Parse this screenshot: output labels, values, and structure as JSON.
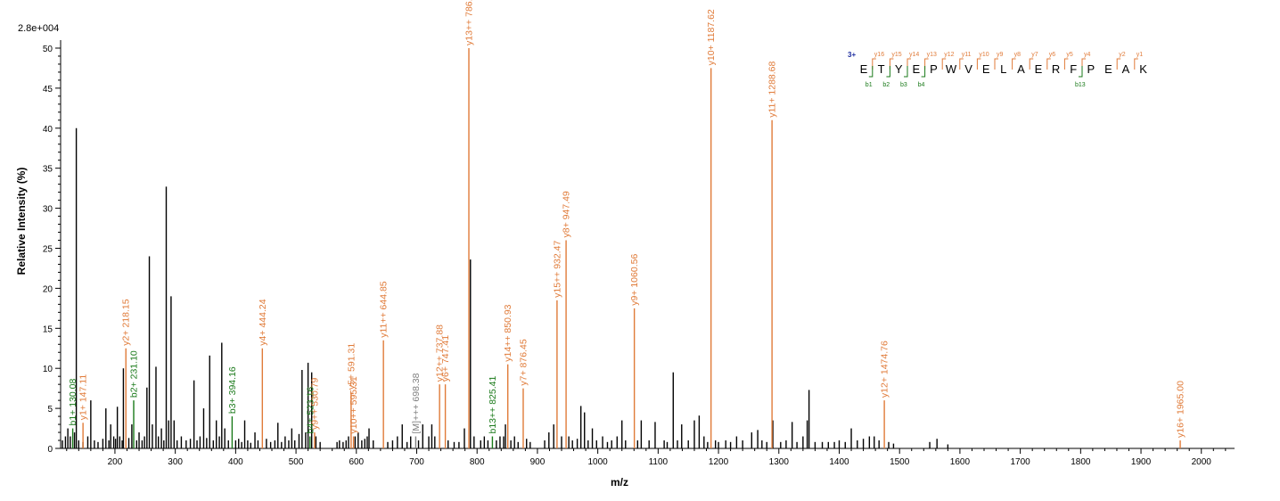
{
  "chart_data": {
    "type": "bar",
    "title": "",
    "scale_label": "2.8e+004",
    "xlabel": "m/z",
    "ylabel": "Relative   Intensity (%)",
    "xlim": [
      110,
      2055
    ],
    "ylim": [
      0,
      51
    ],
    "x_ticks": [
      "200",
      "300",
      "400",
      "500",
      "600",
      "700",
      "800",
      "900",
      "1000",
      "1100",
      "1200",
      "1300",
      "1400",
      "1500",
      "1600",
      "1700",
      "1800",
      "1900",
      "2000"
    ],
    "y_ticks": [
      "0",
      "5",
      "10",
      "15",
      "20",
      "25",
      "30",
      "35",
      "40",
      "45",
      "50"
    ],
    "colors": {
      "y_ion": "#e07b39",
      "b_ion": "#1a7a1a",
      "other": "#808080",
      "peak": "#000000",
      "charge": "#1f2fa0"
    },
    "annotated_peaks": [
      {
        "mz": 130.08,
        "intensity": 2.5,
        "label": "b1+ 130.08",
        "ion": "b"
      },
      {
        "mz": 147.11,
        "intensity": 3.2,
        "label": "y1+ 147.11",
        "ion": "y"
      },
      {
        "mz": 218.15,
        "intensity": 12.5,
        "label": "y2+ 218.15",
        "ion": "y"
      },
      {
        "mz": 231.1,
        "intensity": 6.0,
        "label": "b2+ 231.10",
        "ion": "b"
      },
      {
        "mz": 394.16,
        "intensity": 4.0,
        "label": "b3+ 394.16",
        "ion": "b"
      },
      {
        "mz": 444.24,
        "intensity": 12.5,
        "label": "y4+ 444.24",
        "ion": "y"
      },
      {
        "mz": 523.16,
        "intensity": 1.5,
        "label": "b4+ 523.16",
        "ion": "b"
      },
      {
        "mz": 530.79,
        "intensity": 2.0,
        "label": "y9++ 530.79",
        "ion": "y"
      },
      {
        "mz": 591.31,
        "intensity": 7.0,
        "label": "y5+ 591.31",
        "ion": "y"
      },
      {
        "mz": 595.31,
        "intensity": 1.5,
        "label": "y10++ 595.31",
        "ion": "y"
      },
      {
        "mz": 644.85,
        "intensity": 13.5,
        "label": "y11++ 644.85",
        "ion": "y"
      },
      {
        "mz": 698.38,
        "intensity": 1.5,
        "label": "[M]+++ 698.38",
        "ion": "other"
      },
      {
        "mz": 737.88,
        "intensity": 8.0,
        "label": "y12++ 737.88",
        "ion": "y"
      },
      {
        "mz": 747.41,
        "intensity": 8.0,
        "label": "y6+ 747.41",
        "ion": "y"
      },
      {
        "mz": 786.41,
        "intensity": 50.0,
        "label": "y13++ 786.41",
        "ion": "y"
      },
      {
        "mz": 825.41,
        "intensity": 1.5,
        "label": "b13++ 825.41",
        "ion": "b"
      },
      {
        "mz": 850.93,
        "intensity": 10.5,
        "label": "y14++ 850.93",
        "ion": "y"
      },
      {
        "mz": 876.45,
        "intensity": 7.5,
        "label": "y7+ 876.45",
        "ion": "y"
      },
      {
        "mz": 932.47,
        "intensity": 18.5,
        "label": "y15++ 932.47",
        "ion": "y"
      },
      {
        "mz": 947.49,
        "intensity": 26.0,
        "label": "y8+ 947.49",
        "ion": "y"
      },
      {
        "mz": 1060.56,
        "intensity": 17.5,
        "label": "y9+ 1060.56",
        "ion": "y"
      },
      {
        "mz": 1187.62,
        "intensity": 47.5,
        "label": "y10+ 1187.62",
        "ion": "y"
      },
      {
        "mz": 1288.68,
        "intensity": 41.0,
        "label": "y11+ 1288.68",
        "ion": "y"
      },
      {
        "mz": 1474.76,
        "intensity": 6.0,
        "label": "y12+ 1474.76",
        "ion": "y"
      },
      {
        "mz": 1965.0,
        "intensity": 1.0,
        "label": "y16+ 1965.00",
        "ion": "y"
      }
    ],
    "peaks": [
      [
        113,
        1.0
      ],
      [
        118,
        1.5
      ],
      [
        122,
        2.5
      ],
      [
        126,
        1.5
      ],
      [
        133,
        2.0
      ],
      [
        136,
        40.0
      ],
      [
        140,
        1.0
      ],
      [
        147,
        0.8
      ],
      [
        155,
        1.5
      ],
      [
        160,
        6.0
      ],
      [
        166,
        1.0
      ],
      [
        172,
        0.8
      ],
      [
        180,
        1.2
      ],
      [
        185,
        5.0
      ],
      [
        190,
        1.0
      ],
      [
        193,
        3.0
      ],
      [
        198,
        1.5
      ],
      [
        201,
        1.2
      ],
      [
        204,
        5.2
      ],
      [
        208,
        1.5
      ],
      [
        212,
        1.0
      ],
      [
        214,
        10.0
      ],
      [
        223,
        1.3
      ],
      [
        228,
        3.0
      ],
      [
        236,
        1.0
      ],
      [
        240,
        2.0
      ],
      [
        245,
        1.0
      ],
      [
        249,
        1.5
      ],
      [
        253,
        7.6
      ],
      [
        257,
        24.0
      ],
      [
        262,
        3.0
      ],
      [
        268,
        10.2
      ],
      [
        272,
        1.5
      ],
      [
        277,
        2.5
      ],
      [
        281,
        1.0
      ],
      [
        285,
        32.7
      ],
      [
        289,
        3.5
      ],
      [
        293,
        19.0
      ],
      [
        298,
        3.5
      ],
      [
        303,
        1.0
      ],
      [
        310,
        1.5
      ],
      [
        318,
        1.0
      ],
      [
        325,
        1.2
      ],
      [
        331,
        8.5
      ],
      [
        336,
        1.0
      ],
      [
        341,
        1.5
      ],
      [
        347,
        5.0
      ],
      [
        352,
        1.3
      ],
      [
        357,
        11.6
      ],
      [
        363,
        1.0
      ],
      [
        368,
        3.5
      ],
      [
        373,
        1.5
      ],
      [
        377,
        13.2
      ],
      [
        382,
        2.5
      ],
      [
        388,
        1.0
      ],
      [
        400,
        1.0
      ],
      [
        405,
        1.2
      ],
      [
        410,
        0.8
      ],
      [
        415,
        3.5
      ],
      [
        420,
        1.0
      ],
      [
        425,
        0.7
      ],
      [
        432,
        2.0
      ],
      [
        437,
        1.0
      ],
      [
        451,
        1.2
      ],
      [
        458,
        0.8
      ],
      [
        465,
        1.0
      ],
      [
        470,
        3.2
      ],
      [
        476,
        0.8
      ],
      [
        482,
        1.5
      ],
      [
        488,
        1.0
      ],
      [
        493,
        2.5
      ],
      [
        498,
        1.0
      ],
      [
        505,
        1.8
      ],
      [
        510,
        9.8
      ],
      [
        516,
        2.0
      ],
      [
        520,
        10.7
      ],
      [
        526,
        9.5
      ],
      [
        533,
        1.5
      ],
      [
        540,
        0.8
      ],
      [
        568,
        0.8
      ],
      [
        572,
        1.0
      ],
      [
        578,
        0.8
      ],
      [
        583,
        1.0
      ],
      [
        587,
        1.5
      ],
      [
        598,
        1.5
      ],
      [
        603,
        2.0
      ],
      [
        609,
        1.0
      ],
      [
        614,
        1.2
      ],
      [
        618,
        1.5
      ],
      [
        621,
        2.5
      ],
      [
        628,
        1.0
      ],
      [
        652,
        0.8
      ],
      [
        660,
        1.0
      ],
      [
        668,
        1.5
      ],
      [
        676,
        3.0
      ],
      [
        684,
        0.8
      ],
      [
        690,
        1.5
      ],
      [
        703,
        1.0
      ],
      [
        710,
        3.0
      ],
      [
        720,
        1.5
      ],
      [
        725,
        3.0
      ],
      [
        730,
        1.5
      ],
      [
        752,
        1.0
      ],
      [
        762,
        0.8
      ],
      [
        770,
        0.8
      ],
      [
        779,
        2.5
      ],
      [
        789,
        23.6
      ],
      [
        795,
        1.5
      ],
      [
        806,
        1.0
      ],
      [
        812,
        1.5
      ],
      [
        818,
        1.0
      ],
      [
        832,
        1.0
      ],
      [
        838,
        1.5
      ],
      [
        844,
        1.5
      ],
      [
        847,
        3.0
      ],
      [
        856,
        1.0
      ],
      [
        862,
        1.5
      ],
      [
        868,
        0.8
      ],
      [
        882,
        1.2
      ],
      [
        888,
        0.8
      ],
      [
        912,
        1.0
      ],
      [
        919,
        2.0
      ],
      [
        927,
        3.0
      ],
      [
        940,
        1.5
      ],
      [
        952,
        1.5
      ],
      [
        958,
        1.0
      ],
      [
        966,
        1.2
      ],
      [
        972,
        5.3
      ],
      [
        978,
        4.5
      ],
      [
        984,
        1.0
      ],
      [
        991,
        2.5
      ],
      [
        998,
        1.0
      ],
      [
        1008,
        1.5
      ],
      [
        1016,
        0.8
      ],
      [
        1023,
        1.0
      ],
      [
        1032,
        1.5
      ],
      [
        1040,
        3.5
      ],
      [
        1046,
        1.0
      ],
      [
        1066,
        1.0
      ],
      [
        1072,
        3.5
      ],
      [
        1085,
        1.0
      ],
      [
        1095,
        3.3
      ],
      [
        1110,
        1.0
      ],
      [
        1115,
        0.8
      ],
      [
        1125,
        9.5
      ],
      [
        1132,
        1.0
      ],
      [
        1139,
        3.0
      ],
      [
        1150,
        1.0
      ],
      [
        1160,
        3.5
      ],
      [
        1168,
        4.1
      ],
      [
        1176,
        1.5
      ],
      [
        1182,
        0.8
      ],
      [
        1195,
        1.0
      ],
      [
        1200,
        0.8
      ],
      [
        1212,
        1.0
      ],
      [
        1220,
        0.8
      ],
      [
        1230,
        1.5
      ],
      [
        1240,
        1.0
      ],
      [
        1255,
        2.0
      ],
      [
        1265,
        2.3
      ],
      [
        1272,
        1.0
      ],
      [
        1280,
        0.8
      ],
      [
        1290,
        3.5
      ],
      [
        1303,
        0.8
      ],
      [
        1312,
        1.0
      ],
      [
        1322,
        3.3
      ],
      [
        1330,
        0.8
      ],
      [
        1340,
        1.5
      ],
      [
        1347,
        3.5
      ],
      [
        1350,
        7.3
      ],
      [
        1360,
        0.8
      ],
      [
        1372,
        0.8
      ],
      [
        1382,
        0.8
      ],
      [
        1392,
        0.8
      ],
      [
        1400,
        1.0
      ],
      [
        1410,
        0.8
      ],
      [
        1420,
        2.5
      ],
      [
        1430,
        1.0
      ],
      [
        1440,
        1.2
      ],
      [
        1450,
        1.5
      ],
      [
        1458,
        1.5
      ],
      [
        1466,
        1.0
      ],
      [
        1482,
        0.8
      ],
      [
        1490,
        0.6
      ],
      [
        1550,
        0.8
      ],
      [
        1562,
        1.2
      ],
      [
        1580,
        0.5
      ]
    ]
  },
  "sequence": {
    "charge": "3+",
    "residues": [
      "E",
      "T",
      "Y",
      "E",
      "P",
      "W",
      "V",
      "E",
      "L",
      "A",
      "E",
      "R",
      "F",
      "P",
      "E",
      "A",
      "K"
    ],
    "y_ions": [
      "y16",
      "y15",
      "y14",
      "y13",
      "y12",
      "y11",
      "y10",
      "y9",
      "y8",
      "y7",
      "y6",
      "y5",
      "y4",
      "",
      "y2",
      "y1"
    ],
    "b_ions": [
      "b1",
      "b2",
      "b3",
      "b4",
      "",
      "",
      "",
      "",
      "",
      "",
      "",
      "",
      "b13",
      "",
      "",
      ""
    ]
  }
}
